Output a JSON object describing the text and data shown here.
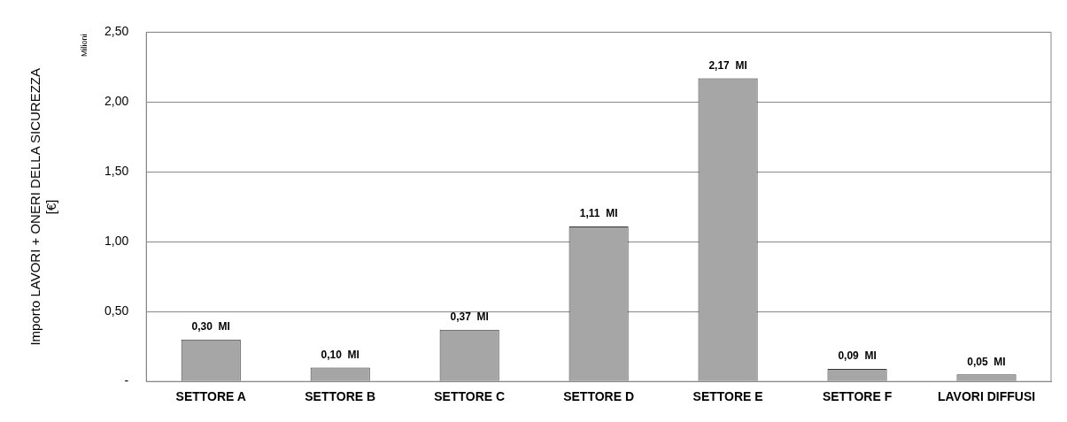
{
  "chart_data": {
    "type": "bar",
    "ylabel": "Importo LAVORI + ONERI DELLA SICUREZZA\n[€]",
    "annotations": [
      "Milioni"
    ],
    "categories": [
      "SETTORE A",
      "SETTORE B",
      "SETTORE C",
      "SETTORE D",
      "SETTORE E",
      "SETTORE F",
      "LAVORI DIFFUSI"
    ],
    "values": [
      0.3,
      0.1,
      0.37,
      1.11,
      2.17,
      0.09,
      0.05
    ],
    "value_labels": [
      "0,30  MI",
      "0,10  MI",
      "0,37  MI",
      "1,11  MI",
      "2,17  MI",
      "0,09  MI",
      "0,05  MI"
    ],
    "color": "#a6a6a6",
    "ylim": [
      0,
      2.5
    ],
    "yticks": [
      {
        "value": 0,
        "label": "-"
      },
      {
        "value": 0.5,
        "label": "0,50"
      },
      {
        "value": 1,
        "label": "1,00"
      },
      {
        "value": 1.5,
        "label": "1,50"
      },
      {
        "value": 2,
        "label": "2,00"
      },
      {
        "value": 2.5,
        "label": "2,50"
      }
    ],
    "grid": "y",
    "legend": false
  }
}
